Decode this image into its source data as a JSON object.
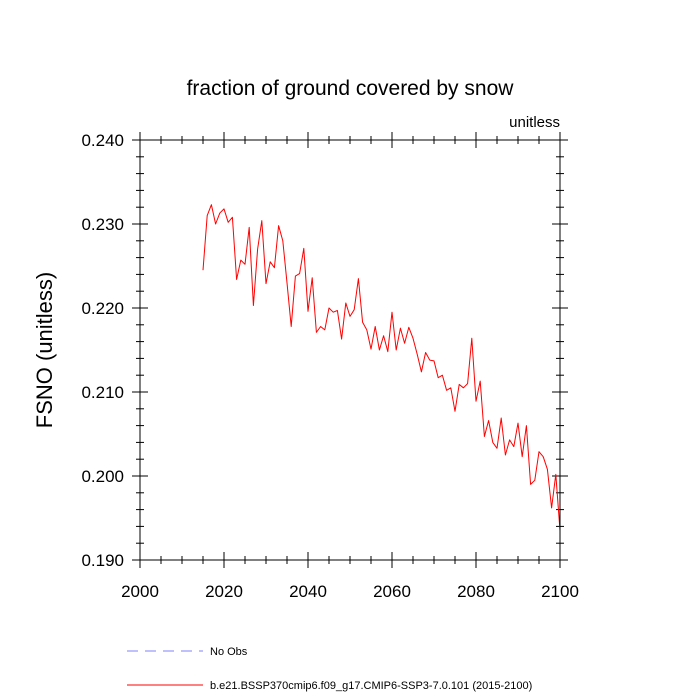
{
  "chart_data": {
    "type": "line",
    "title": "fraction of ground covered by snow",
    "units_label": "unitless",
    "xlabel": "",
    "ylabel": "FSNO  (unitless)",
    "xlim": [
      2000,
      2100
    ],
    "ylim": [
      0.19,
      0.24
    ],
    "x_ticks": [
      2000,
      2020,
      2040,
      2060,
      2080,
      2100
    ],
    "x_tick_labels": [
      "2000",
      "2020",
      "2040",
      "2060",
      "2080",
      "2100"
    ],
    "y_ticks": [
      0.19,
      0.2,
      0.21,
      0.22,
      0.23,
      0.24
    ],
    "y_tick_labels": [
      "0.190",
      "0.200",
      "0.210",
      "0.220",
      "0.230",
      "0.240"
    ],
    "grid": false,
    "series": [
      {
        "name": "b.e21.BSSP370cmip6.f09_g17.CMIP6-SSP3-7.0.101 (2015-2100)",
        "color": "#ff0000",
        "style": "solid",
        "x": [
          2015,
          2016,
          2017,
          2018,
          2019,
          2020,
          2021,
          2022,
          2023,
          2024,
          2025,
          2026,
          2027,
          2028,
          2029,
          2030,
          2031,
          2032,
          2033,
          2034,
          2035,
          2036,
          2037,
          2038,
          2039,
          2040,
          2041,
          2042,
          2043,
          2044,
          2045,
          2046,
          2047,
          2048,
          2049,
          2050,
          2051,
          2052,
          2053,
          2054,
          2055,
          2056,
          2057,
          2058,
          2059,
          2060,
          2061,
          2062,
          2063,
          2064,
          2065,
          2066,
          2067,
          2068,
          2069,
          2070,
          2071,
          2072,
          2073,
          2074,
          2075,
          2076,
          2077,
          2078,
          2079,
          2080,
          2081,
          2082,
          2083,
          2084,
          2085,
          2086,
          2087,
          2088,
          2089,
          2090,
          2091,
          2092,
          2093,
          2094,
          2095,
          2096,
          2097,
          2098,
          2099,
          2100
        ],
        "values": [
          0.2245,
          0.231,
          0.2323,
          0.23,
          0.2313,
          0.2318,
          0.2302,
          0.2308,
          0.2234,
          0.2257,
          0.2252,
          0.2296,
          0.2203,
          0.227,
          0.2304,
          0.2229,
          0.2255,
          0.2248,
          0.2298,
          0.228,
          0.223,
          0.2178,
          0.2238,
          0.2241,
          0.2271,
          0.2196,
          0.2236,
          0.2171,
          0.2178,
          0.2174,
          0.22,
          0.2195,
          0.2197,
          0.2163,
          0.2206,
          0.219,
          0.2198,
          0.2235,
          0.2183,
          0.2174,
          0.2151,
          0.2178,
          0.215,
          0.2167,
          0.2148,
          0.2195,
          0.215,
          0.2176,
          0.2158,
          0.2177,
          0.2164,
          0.2145,
          0.2124,
          0.2147,
          0.2138,
          0.2137,
          0.2117,
          0.212,
          0.2102,
          0.2105,
          0.2077,
          0.2109,
          0.2105,
          0.211,
          0.2164,
          0.2089,
          0.2113,
          0.2047,
          0.2066,
          0.204,
          0.2033,
          0.2069,
          0.2025,
          0.2043,
          0.2035,
          0.2063,
          0.2023,
          0.206,
          0.199,
          0.1995,
          0.2029,
          0.2023,
          0.2008,
          0.1962,
          0.2002,
          0.1935
        ]
      }
    ],
    "legend": [
      {
        "label": "No Obs",
        "color": "#8080ff",
        "style": "dashed"
      },
      {
        "label": "b.e21.BSSP370cmip6.f09_g17.CMIP6-SSP3-7.0.101 (2015-2100)",
        "color": "#ff0000",
        "style": "solid"
      }
    ],
    "legend_placement": "bottom"
  }
}
